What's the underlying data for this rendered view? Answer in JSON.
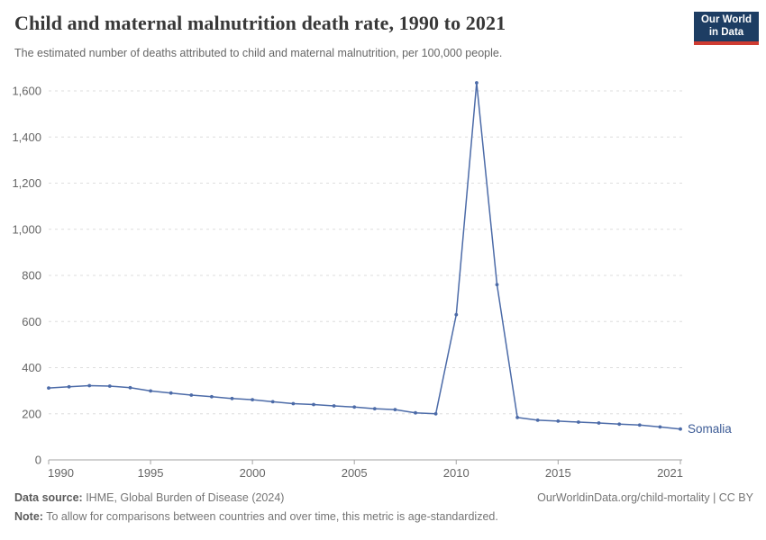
{
  "header": {
    "title": "Child and maternal malnutrition death rate, 1990 to 2021",
    "subtitle": "The estimated number of deaths attributed to child and maternal malnutrition, per 100,000 people.",
    "logo": {
      "line1": "Our World",
      "line2": "in Data"
    }
  },
  "chart_data": {
    "type": "line",
    "title": "Child and maternal malnutrition death rate, 1990 to 2021",
    "xlabel": "",
    "ylabel": "",
    "x": [
      1990,
      1991,
      1992,
      1993,
      1994,
      1995,
      1996,
      1997,
      1998,
      1999,
      2000,
      2001,
      2002,
      2003,
      2004,
      2005,
      2006,
      2007,
      2008,
      2009,
      2010,
      2011,
      2012,
      2013,
      2014,
      2015,
      2016,
      2017,
      2018,
      2019,
      2020,
      2021
    ],
    "series": [
      {
        "name": "Somalia",
        "values": [
          312,
          317,
          322,
          320,
          313,
          299,
          290,
          281,
          274,
          266,
          261,
          252,
          244,
          240,
          234,
          229,
          222,
          218,
          204,
          200,
          630,
          1635,
          760,
          184,
          172,
          168,
          164,
          160,
          155,
          151,
          143,
          134
        ]
      }
    ],
    "xticks": [
      1990,
      1995,
      2000,
      2005,
      2010,
      2015,
      2021
    ],
    "yticks": [
      0,
      200,
      400,
      600,
      800,
      1000,
      1200,
      1400,
      1600
    ],
    "xlim": [
      1990,
      2021
    ],
    "ylim": [
      0,
      1600
    ],
    "grid": "horizontal-dashed",
    "legend_position": "end-of-line-label"
  },
  "colors": {
    "line": "#4c6ba8",
    "series_label": "#3d5c96",
    "grid": "#dedede",
    "axis": "#a3a3a3",
    "tick_text": "#666666",
    "logo_bg": "#1d3d63",
    "logo_red": "#cf3c32"
  },
  "footer": {
    "datasource_label": "Data source:",
    "datasource_value": " IHME, Global Burden of Disease (2024)",
    "link": "OurWorldinData.org/child-mortality | CC BY",
    "note_label": "Note:",
    "note_value": " To allow for comparisons between countries and over time, this metric is age-standardized."
  }
}
